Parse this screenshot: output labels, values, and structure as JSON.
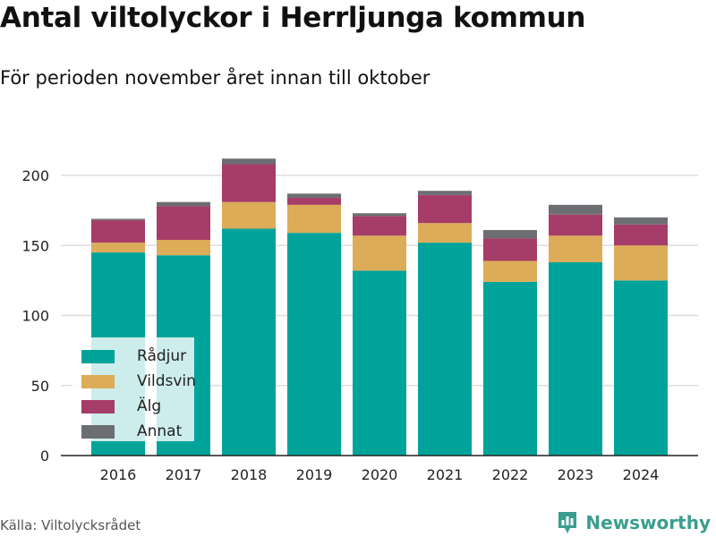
{
  "title": "Antal viltolyckor i Herrljunga kommun",
  "subtitle": "För perioden november året innan till oktober",
  "source": "Källa: Viltolycksrådet",
  "brand": {
    "name": "Newsworthy",
    "icon": "newsworthy-logo-icon",
    "color": "#3a9e8f"
  },
  "chart_data": {
    "type": "bar",
    "stacked": true,
    "categories": [
      "2016",
      "2017",
      "2018",
      "2019",
      "2020",
      "2021",
      "2022",
      "2023",
      "2024"
    ],
    "series": [
      {
        "name": "Rådjur",
        "color": "#00a39a",
        "values": [
          145,
          143,
          162,
          159,
          132,
          152,
          124,
          138,
          125
        ]
      },
      {
        "name": "Vildsvin",
        "color": "#dcac59",
        "values": [
          7,
          11,
          19,
          20,
          25,
          14,
          15,
          19,
          25
        ]
      },
      {
        "name": "Älg",
        "color": "#a63d68",
        "values": [
          16,
          24,
          27,
          5,
          14,
          20,
          16,
          15,
          15
        ]
      },
      {
        "name": "Annat",
        "color": "#6d6e71",
        "values": [
          1,
          3,
          4,
          3,
          2,
          3,
          6,
          7,
          5
        ]
      }
    ],
    "y_ticks": [
      0,
      50,
      100,
      150,
      200
    ],
    "ylim": [
      0,
      220
    ],
    "grid": true,
    "legend": "bottom-left",
    "xlabel": "",
    "ylabel": ""
  }
}
